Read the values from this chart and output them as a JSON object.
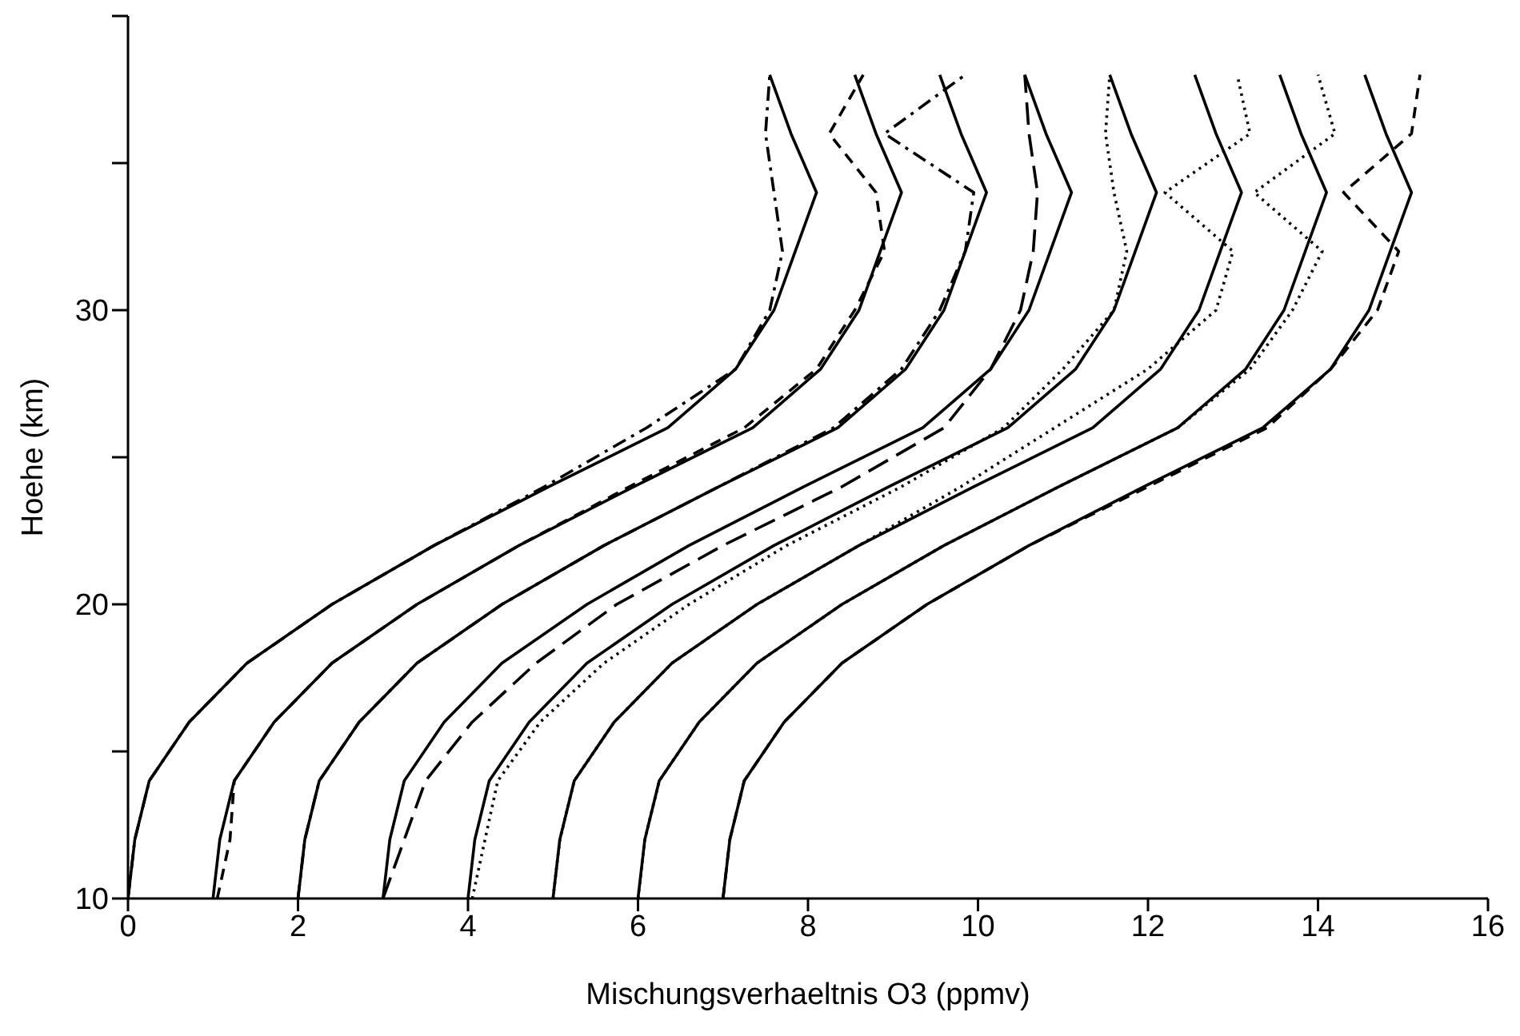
{
  "chart_data": {
    "type": "line",
    "xlabel": "Mischungsverhaeltnis O3 (ppmv)",
    "ylabel": "Hoehe (km)",
    "xlim": [
      0,
      16
    ],
    "xticks": [
      0,
      2,
      4,
      6,
      8,
      10,
      12,
      14,
      16
    ],
    "ylim": [
      10,
      40
    ],
    "yticks": [
      10,
      {
        "value": 15,
        "label": null
      },
      20,
      {
        "value": 25,
        "label": null
      },
      30,
      {
        "value": 35,
        "label": null
      },
      {
        "value": 40,
        "label": null
      }
    ],
    "grid": false,
    "legend": false,
    "marker": "none",
    "series": [
      {
        "color": "#000000",
        "line_style": "solid",
        "x": [
          0,
          0.08,
          0.25,
          0.72,
          1.4,
          2.4,
          3.6,
          4.95,
          6.35,
          7.15,
          7.6,
          7.85,
          8.1,
          7.8,
          7.55
        ],
        "values": [
          10,
          12,
          14,
          16,
          18,
          20,
          22,
          24,
          26,
          28,
          30,
          32,
          34,
          36,
          38
        ]
      },
      {
        "color": "#000000",
        "line_style": "dashdot",
        "x": [
          0,
          0.08,
          0.25,
          0.72,
          1.4,
          2.4,
          3.6,
          4.9,
          6.1,
          7.15,
          7.55,
          7.7,
          7.6,
          7.5,
          7.55
        ],
        "values": [
          10,
          12,
          14,
          16,
          18,
          20,
          22,
          24,
          26,
          28,
          30,
          32,
          34,
          36,
          38
        ]
      },
      {
        "color": "#000000",
        "line_style": "solid",
        "x": [
          1,
          1.08,
          1.25,
          1.72,
          2.4,
          3.4,
          4.6,
          5.95,
          7.35,
          8.15,
          8.6,
          8.85,
          9.1,
          8.8,
          8.55
        ],
        "values": [
          10,
          12,
          14,
          16,
          18,
          20,
          22,
          24,
          26,
          28,
          30,
          32,
          34,
          36,
          38
        ]
      },
      {
        "color": "#000000",
        "line_style": "dashed",
        "x": [
          1.05,
          1.2,
          1.25,
          1.72,
          2.4,
          3.4,
          4.6,
          5.9,
          7.25,
          8.1,
          8.55,
          8.9,
          8.8,
          8.25,
          8.65
        ],
        "values": [
          10,
          12,
          14,
          16,
          18,
          20,
          22,
          24,
          26,
          28,
          30,
          32,
          34,
          36,
          38
        ]
      },
      {
        "color": "#000000",
        "line_style": "solid",
        "x": [
          2,
          2.08,
          2.25,
          2.72,
          3.4,
          4.4,
          5.6,
          6.95,
          8.35,
          9.15,
          9.6,
          9.85,
          10.1,
          9.8,
          9.55
        ],
        "values": [
          10,
          12,
          14,
          16,
          18,
          20,
          22,
          24,
          26,
          28,
          30,
          32,
          34,
          36,
          38
        ]
      },
      {
        "color": "#000000",
        "line_style": "dashdot",
        "x": [
          2,
          2.08,
          2.25,
          2.72,
          3.4,
          4.4,
          5.6,
          6.95,
          8.3,
          9.1,
          9.55,
          9.85,
          9.95,
          8.9,
          9.85
        ],
        "values": [
          10,
          12,
          14,
          16,
          18,
          20,
          22,
          24,
          26,
          28,
          30,
          32,
          34,
          36,
          38
        ]
      },
      {
        "color": "#000000",
        "line_style": "solid",
        "x": [
          3,
          3.08,
          3.25,
          3.72,
          4.4,
          5.4,
          6.6,
          7.95,
          9.35,
          10.15,
          10.6,
          10.85,
          11.1,
          10.8,
          10.55
        ],
        "values": [
          10,
          12,
          14,
          16,
          18,
          20,
          22,
          24,
          26,
          28,
          30,
          32,
          34,
          36,
          38
        ]
      },
      {
        "color": "#000000",
        "line_style": "longdash",
        "x": [
          3,
          3.25,
          3.5,
          4.05,
          4.8,
          5.75,
          7.0,
          8.4,
          9.6,
          10.15,
          10.5,
          10.65,
          10.7,
          10.6,
          10.55
        ],
        "values": [
          10,
          12,
          14,
          16,
          18,
          20,
          22,
          24,
          26,
          28,
          30,
          32,
          34,
          36,
          38
        ]
      },
      {
        "color": "#000000",
        "line_style": "solid",
        "x": [
          4,
          4.08,
          4.25,
          4.72,
          5.4,
          6.4,
          7.6,
          8.95,
          10.35,
          11.15,
          11.6,
          11.85,
          12.1,
          11.8,
          11.55
        ],
        "values": [
          10,
          12,
          14,
          16,
          18,
          20,
          22,
          24,
          26,
          28,
          30,
          32,
          34,
          36,
          38
        ]
      },
      {
        "color": "#000000",
        "line_style": "dotted",
        "x": [
          4.05,
          4.2,
          4.35,
          4.85,
          5.6,
          6.6,
          7.75,
          9.1,
          10.3,
          11.0,
          11.6,
          11.75,
          11.6,
          11.5,
          11.55
        ],
        "values": [
          10,
          12,
          14,
          16,
          18,
          20,
          22,
          24,
          26,
          28,
          30,
          32,
          34,
          36,
          38
        ]
      },
      {
        "color": "#000000",
        "line_style": "solid",
        "x": [
          5,
          5.08,
          5.25,
          5.72,
          6.4,
          7.4,
          8.6,
          9.95,
          11.35,
          12.15,
          12.6,
          12.85,
          13.1,
          12.8,
          12.55
        ],
        "values": [
          10,
          12,
          14,
          16,
          18,
          20,
          22,
          24,
          26,
          28,
          30,
          32,
          34,
          36,
          38
        ]
      },
      {
        "color": "#000000",
        "line_style": "dotted",
        "x": [
          5,
          5.08,
          5.25,
          5.72,
          6.4,
          7.4,
          8.6,
          9.8,
          10.9,
          12.0,
          12.8,
          13.0,
          12.2,
          13.2,
          13.05
        ],
        "values": [
          10,
          12,
          14,
          16,
          18,
          20,
          22,
          24,
          26,
          28,
          30,
          32,
          34,
          36,
          38
        ]
      },
      {
        "color": "#000000",
        "line_style": "solid",
        "x": [
          6,
          6.08,
          6.25,
          6.72,
          7.4,
          8.4,
          9.6,
          10.95,
          12.35,
          13.15,
          13.6,
          13.85,
          14.1,
          13.8,
          13.55
        ],
        "values": [
          10,
          12,
          14,
          16,
          18,
          20,
          22,
          24,
          26,
          28,
          30,
          32,
          34,
          36,
          38
        ]
      },
      {
        "color": "#000000",
        "line_style": "dotted",
        "x": [
          6,
          6.08,
          6.25,
          6.72,
          7.4,
          8.4,
          9.6,
          10.95,
          12.35,
          13.2,
          13.7,
          14.05,
          13.25,
          14.2,
          14.0
        ],
        "values": [
          10,
          12,
          14,
          16,
          18,
          20,
          22,
          24,
          26,
          28,
          30,
          32,
          34,
          36,
          38
        ]
      },
      {
        "color": "#000000",
        "line_style": "solid",
        "x": [
          7,
          7.08,
          7.25,
          7.72,
          8.4,
          9.4,
          10.6,
          11.95,
          13.35,
          14.15,
          14.6,
          14.85,
          15.1,
          14.8,
          14.55
        ],
        "values": [
          10,
          12,
          14,
          16,
          18,
          20,
          22,
          24,
          26,
          28,
          30,
          32,
          34,
          36,
          38
        ]
      },
      {
        "color": "#000000",
        "line_style": "dashed",
        "x": [
          7,
          7.08,
          7.25,
          7.72,
          8.4,
          9.4,
          10.6,
          12.0,
          13.4,
          14.15,
          14.7,
          14.95,
          14.3,
          15.1,
          15.2
        ],
        "values": [
          10,
          12,
          14,
          16,
          18,
          20,
          22,
          24,
          26,
          28,
          30,
          32,
          34,
          36,
          38
        ]
      }
    ]
  }
}
